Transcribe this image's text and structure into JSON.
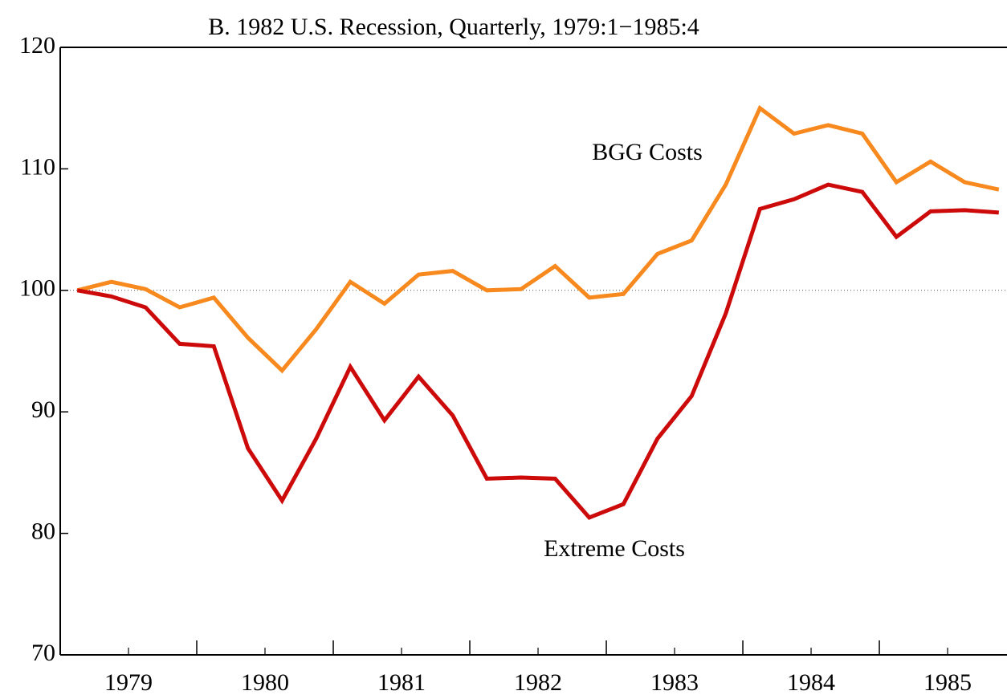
{
  "chart_data": {
    "type": "line",
    "title": "B. 1982 U.S. Recession, Quarterly, 1979:1−1985:4",
    "x": [
      1979.125,
      1979.375,
      1979.625,
      1979.875,
      1980.125,
      1980.375,
      1980.625,
      1980.875,
      1981.125,
      1981.375,
      1981.625,
      1981.875,
      1982.125,
      1982.375,
      1982.625,
      1982.875,
      1983.125,
      1983.375,
      1983.625,
      1983.875,
      1984.125,
      1984.375,
      1984.625,
      1984.875,
      1985.125,
      1985.375,
      1985.625,
      1985.875
    ],
    "series": [
      {
        "name": "BGG Costs",
        "color": "#f7891e",
        "values": [
          100.0,
          100.7,
          100.1,
          98.6,
          99.4,
          96.1,
          93.4,
          96.8,
          100.7,
          98.9,
          101.3,
          101.6,
          100.0,
          100.1,
          102.0,
          99.4,
          99.7,
          103.0,
          104.1,
          108.7,
          115.0,
          112.9,
          113.6,
          112.9,
          108.9,
          110.6,
          108.9,
          108.3
        ]
      },
      {
        "name": "Extreme Costs",
        "color": "#cc0a0a",
        "values": [
          100.0,
          99.5,
          98.6,
          95.6,
          95.4,
          87.0,
          82.7,
          87.8,
          93.7,
          89.3,
          92.9,
          89.7,
          84.5,
          84.6,
          84.5,
          81.3,
          82.4,
          87.8,
          91.3,
          98.1,
          106.7,
          107.5,
          108.7,
          108.1,
          104.4,
          106.5,
          106.6,
          106.4
        ]
      }
    ],
    "xlim": [
      1979,
      1985.935
    ],
    "xticks": [
      {
        "value": 1979.5,
        "label": "1979"
      },
      {
        "value": 1980.5,
        "label": "1980"
      },
      {
        "value": 1981.5,
        "label": "1981"
      },
      {
        "value": 1982.5,
        "label": "1982"
      },
      {
        "value": 1983.5,
        "label": "1983"
      },
      {
        "value": 1984.5,
        "label": "1984"
      },
      {
        "value": 1985.5,
        "label": "1985"
      }
    ],
    "xmajorticks": [
      1980,
      1981,
      1982,
      1983,
      1984,
      1985
    ],
    "ylim": [
      70,
      120
    ],
    "yticks": [
      70,
      80,
      90,
      100,
      110,
      120
    ],
    "reference_line": 100
  }
}
